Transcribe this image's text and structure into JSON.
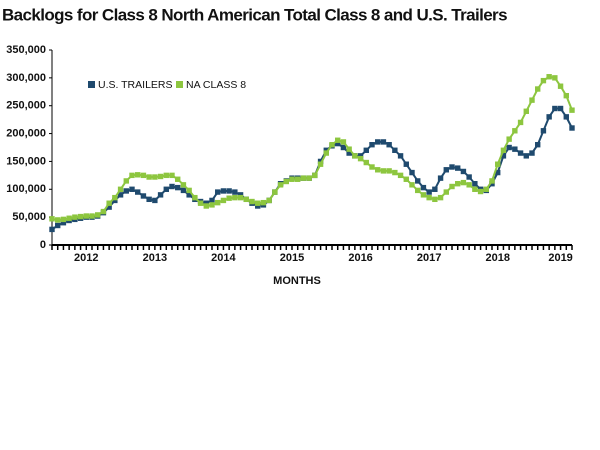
{
  "chart_data": {
    "type": "line",
    "title": "Backlogs for Class 8 North American Total Class 8 and U.S. Trailers",
    "xlabel": "MONTHS",
    "categories": [
      null,
      null,
      null,
      null,
      null,
      null,
      "2012",
      null,
      null,
      null,
      null,
      null,
      null,
      null,
      null,
      null,
      null,
      null,
      "2013",
      null,
      null,
      null,
      null,
      null,
      null,
      null,
      null,
      null,
      null,
      null,
      "2014",
      null,
      null,
      null,
      null,
      null,
      null,
      null,
      null,
      null,
      null,
      null,
      "2015",
      null,
      null,
      null,
      null,
      null,
      null,
      null,
      null,
      null,
      null,
      null,
      "2016",
      null,
      null,
      null,
      null,
      null,
      null,
      null,
      null,
      null,
      null,
      null,
      "2017",
      null,
      null,
      null,
      null,
      null,
      null,
      null,
      null,
      null,
      null,
      null,
      "2018",
      null,
      null,
      null,
      null,
      null,
      null,
      null,
      null,
      null,
      null,
      "2019",
      null,
      null
    ],
    "series": [
      {
        "name": "U.S. TRAILERS",
        "color": "#1f4a6e",
        "values": [
          28000,
          35000,
          40000,
          44000,
          46000,
          48000,
          50000,
          50000,
          52000,
          58000,
          68000,
          80000,
          90000,
          97000,
          100000,
          95000,
          88000,
          82000,
          80000,
          90000,
          100000,
          105000,
          103000,
          98000,
          90000,
          82000,
          78000,
          75000,
          80000,
          95000,
          97000,
          97000,
          95000,
          90000,
          82000,
          75000,
          70000,
          72000,
          80000,
          95000,
          110000,
          115000,
          120000,
          120000,
          120000,
          120000,
          125000,
          150000,
          170000,
          178000,
          182000,
          175000,
          165000,
          160000,
          160000,
          170000,
          180000,
          185000,
          185000,
          180000,
          170000,
          160000,
          145000,
          130000,
          115000,
          103000,
          95000,
          100000,
          120000,
          135000,
          140000,
          138000,
          132000,
          122000,
          110000,
          100000,
          98000,
          110000,
          130000,
          160000,
          175000,
          172000,
          165000,
          160000,
          165000,
          180000,
          205000,
          230000,
          245000,
          245000,
          230000,
          210000
        ]
      },
      {
        "name": "NA CLASS 8",
        "color": "#8dc63f",
        "values": [
          47000,
          45000,
          46000,
          48000,
          50000,
          51000,
          52000,
          52000,
          54000,
          60000,
          75000,
          85000,
          100000,
          115000,
          125000,
          126000,
          125000,
          122000,
          122000,
          123000,
          125000,
          125000,
          118000,
          108000,
          98000,
          85000,
          75000,
          70000,
          72000,
          76000,
          80000,
          84000,
          85000,
          85000,
          82000,
          78000,
          75000,
          76000,
          80000,
          95000,
          108000,
          114000,
          118000,
          118000,
          120000,
          120000,
          125000,
          145000,
          165000,
          180000,
          188000,
          185000,
          172000,
          160000,
          155000,
          148000,
          140000,
          135000,
          133000,
          133000,
          130000,
          125000,
          118000,
          108000,
          98000,
          90000,
          85000,
          82000,
          85000,
          95000,
          105000,
          110000,
          112000,
          108000,
          100000,
          96000,
          100000,
          115000,
          145000,
          170000,
          190000,
          205000,
          220000,
          240000,
          260000,
          280000,
          295000,
          302000,
          300000,
          285000,
          268000,
          242000
        ]
      }
    ],
    "ylim": [
      0,
      350000
    ],
    "yticks": [
      0,
      {
        "value": 50000,
        "label": "50,000"
      },
      {
        "value": 100000,
        "label": "100,000"
      },
      {
        "value": 150000,
        "label": "150,000"
      },
      {
        "value": 200000,
        "label": "200,000"
      },
      {
        "value": 250000,
        "label": "250,000"
      },
      {
        "value": 300000,
        "label": "300,000"
      },
      {
        "value": 350000,
        "label": "350,000"
      }
    ],
    "grid": false,
    "legend": "upper left"
  }
}
